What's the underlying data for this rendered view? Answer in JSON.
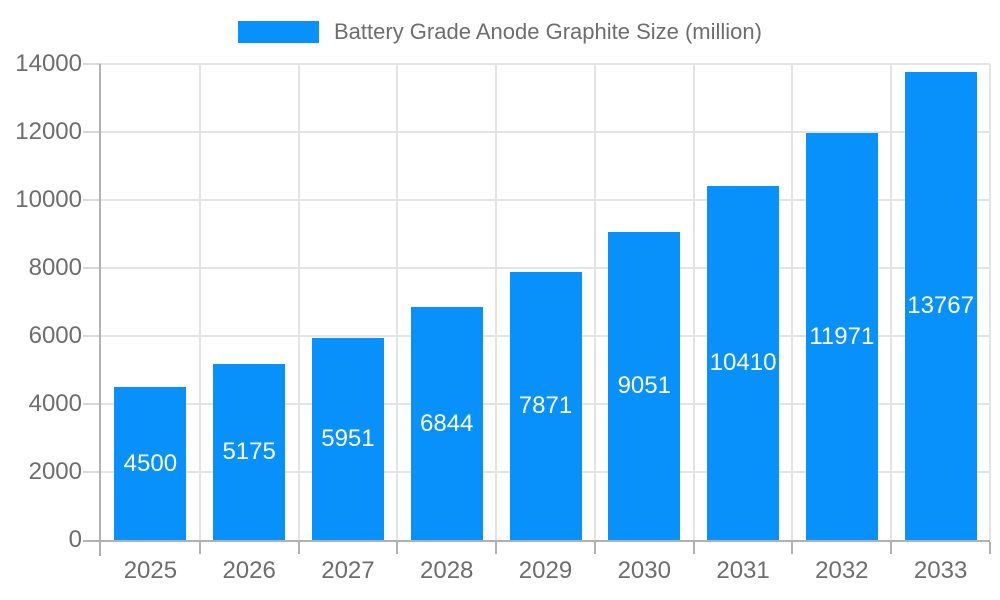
{
  "legend": {
    "label": "Battery Grade Anode Graphite Size (million)"
  },
  "chart_data": {
    "type": "bar",
    "title": "Battery Grade Anode Graphite Size (million)",
    "categories": [
      "2025",
      "2026",
      "2027",
      "2028",
      "2029",
      "2030",
      "2031",
      "2032",
      "2033"
    ],
    "values": [
      4500,
      5175,
      5951,
      6844,
      7871,
      9051,
      10410,
      11971,
      13767
    ],
    "xlabel": "",
    "ylabel": "",
    "ylim": [
      0,
      14000
    ],
    "yticks": [
      0,
      2000,
      4000,
      6000,
      8000,
      10000,
      12000,
      14000
    ],
    "grid": true,
    "legend_position": "top-center",
    "value_labels": "inside-center",
    "colors": {
      "bar": "#0891fa",
      "axis": "#b1b1b1",
      "grid": "#e4e4e4",
      "tick": "#d9d9d9",
      "text": "#6e6e6e",
      "value_label": "#ffffff"
    }
  }
}
